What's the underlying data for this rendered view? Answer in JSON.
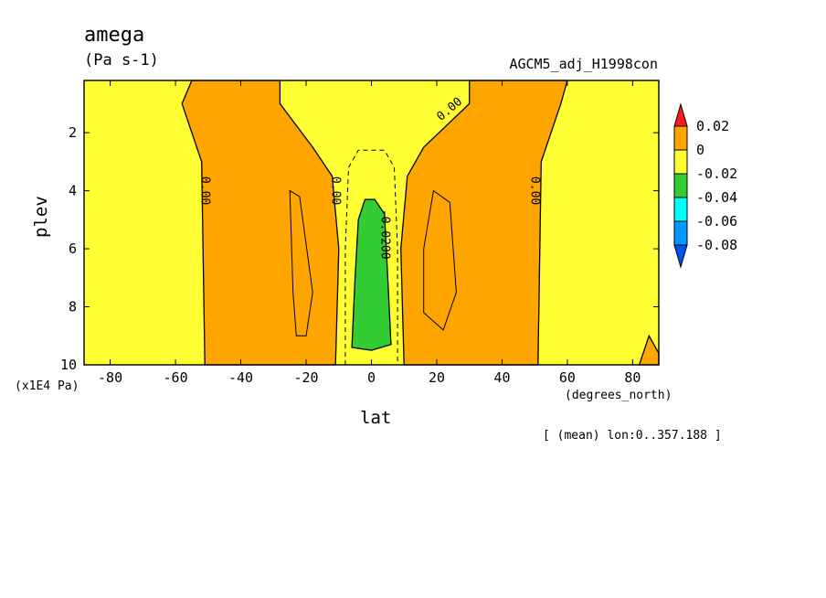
{
  "chart_data": {
    "type": "heatmap",
    "title": "amega",
    "units": "(Pa s-1)",
    "run_label": "AGCM5_adj_H1998con",
    "xlabel": "lat",
    "x_units": "(degrees_north)",
    "ylabel": "plev",
    "y_scale_label": "(x1E4 Pa)",
    "note": "[ (mean) lon:0..357.188 ]",
    "xlim": [
      -88,
      88
    ],
    "ylim": [
      10,
      0.2
    ],
    "x_ticks": [
      -80,
      -60,
      -40,
      -20,
      0,
      20,
      40,
      60,
      80
    ],
    "y_ticks": [
      2,
      4,
      6,
      8,
      10
    ],
    "colorbar": {
      "levels": [
        "0.02",
        "0",
        "-0.02",
        "-0.04",
        "-0.06",
        "-0.08"
      ],
      "colors": {
        "above_0.02": "#ff1a1a",
        "0_to_0.02": "#ffa500",
        "-0.02_to_0": "#ffff33",
        "-0.04_to_-0.02": "#33cc33",
        "-0.06_to_-0.04": "#00ffff",
        "-0.08_to_-0.06": "#0099ff",
        "below_-0.08": "#0055ee"
      }
    },
    "regions": [
      {
        "value_range": "0 to 0.02",
        "color": "#ffa500",
        "lat_plev": [
          [
            -55,
            0.2
          ],
          [
            -58,
            1.0
          ],
          [
            -52,
            3.0
          ],
          [
            -51,
            10
          ],
          [
            -11,
            10
          ],
          [
            -10,
            6
          ],
          [
            -12,
            3.5
          ],
          [
            -18,
            2.5
          ],
          [
            -28,
            1.0
          ],
          [
            -28,
            0.2
          ]
        ]
      },
      {
        "value_range": "0 to 0.02",
        "color": "#ffa500",
        "lat_plev": [
          [
            60,
            0.2
          ],
          [
            58,
            1.0
          ],
          [
            52,
            3.0
          ],
          [
            51,
            10
          ],
          [
            10,
            10
          ],
          [
            9,
            6
          ],
          [
            11,
            3.5
          ],
          [
            16,
            2.5
          ],
          [
            30,
            1.0
          ],
          [
            30,
            0.2
          ]
        ]
      },
      {
        "value_range": "0 to 0.02",
        "color": "#ffa500",
        "lat_plev": [
          [
            85,
            9.0
          ],
          [
            88,
            9.6
          ],
          [
            88,
            10
          ],
          [
            82,
            10
          ]
        ]
      },
      {
        "value_range": "-0.04 to -0.02",
        "color": "#33cc33",
        "lat_plev": [
          [
            -6,
            9.4
          ],
          [
            -5,
            7.0
          ],
          [
            -4,
            5.0
          ],
          [
            -2,
            4.3
          ],
          [
            1,
            4.3
          ],
          [
            4,
            4.8
          ],
          [
            5,
            7.0
          ],
          [
            6,
            9.3
          ],
          [
            0,
            9.5
          ]
        ]
      }
    ],
    "contour_labels": [
      {
        "text": "0.00",
        "lat": -51,
        "plev": 4.0
      },
      {
        "text": "0.00",
        "lat": -11,
        "plev": 4.0
      },
      {
        "text": "0.00",
        "lat": 24,
        "plev": 1.2
      },
      {
        "text": "0.00",
        "lat": 50,
        "plev": 4.0
      },
      {
        "text": "-0.0200",
        "lat": 4,
        "plev": 5.5
      }
    ]
  }
}
